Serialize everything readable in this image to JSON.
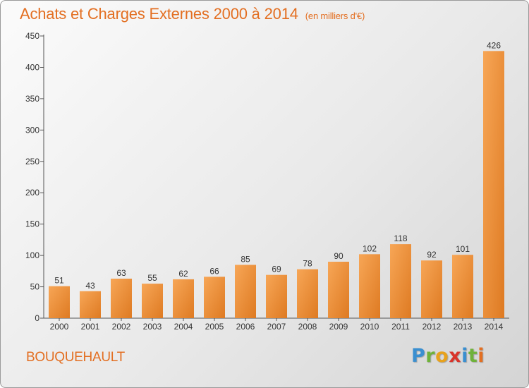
{
  "title": "Achats et Charges Externes 2000 à 2014",
  "unit_note": "(en milliers d'€)",
  "commune": "BOUQUEHAULT",
  "logo": {
    "letters": [
      "P",
      "r",
      "o",
      "x",
      "i",
      "t",
      "i"
    ],
    "colors": [
      "#3a8fd0",
      "#6fb23a",
      "#e8a21c",
      "#d9332a",
      "#3a8fd0",
      "#6fb23a",
      "#e36f22"
    ]
  },
  "colors": {
    "title": "#e36f22",
    "bar_light": "#f7a656",
    "bar_dark": "#de7a22"
  },
  "chart_data": {
    "type": "bar",
    "categories": [
      "2000",
      "2001",
      "2002",
      "2003",
      "2004",
      "2005",
      "2006",
      "2007",
      "2008",
      "2009",
      "2010",
      "2011",
      "2012",
      "2013",
      "2014"
    ],
    "values": [
      51,
      43,
      63,
      55,
      62,
      66,
      85,
      69,
      78,
      90,
      102,
      118,
      92,
      101,
      426
    ],
    "y_ticks": [
      0,
      50,
      100,
      150,
      200,
      250,
      300,
      350,
      400,
      450
    ],
    "ylim": [
      0,
      450
    ],
    "grid": false,
    "data_labels": true
  }
}
